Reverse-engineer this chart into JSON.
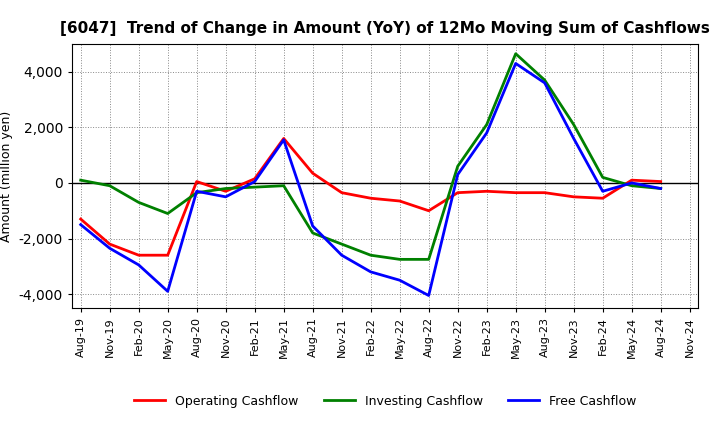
{
  "title": "[6047]  Trend of Change in Amount (YoY) of 12Mo Moving Sum of Cashflows",
  "ylabel": "Amount (million yen)",
  "x_labels": [
    "Aug-19",
    "Nov-19",
    "Feb-20",
    "May-20",
    "Aug-20",
    "Nov-20",
    "Feb-21",
    "May-21",
    "Aug-21",
    "Nov-21",
    "Feb-22",
    "May-22",
    "Aug-22",
    "Nov-22",
    "Feb-23",
    "May-23",
    "Aug-23",
    "Nov-23",
    "Feb-24",
    "May-24",
    "Aug-24",
    "Nov-24"
  ],
  "operating": [
    -1300,
    -2200,
    -2600,
    -2600,
    50,
    -300,
    150,
    1600,
    350,
    -350,
    -550,
    -650,
    -1000,
    -350,
    -300,
    -350,
    -350,
    -500,
    -550,
    100,
    50,
    null
  ],
  "investing": [
    100,
    -100,
    -700,
    -1100,
    -350,
    -200,
    -150,
    -100,
    -1800,
    -2200,
    -2600,
    -2750,
    -2750,
    600,
    2100,
    4650,
    3700,
    2100,
    200,
    -100,
    -200,
    null
  ],
  "free": [
    -1500,
    -2350,
    -2950,
    -3900,
    -300,
    -500,
    50,
    1550,
    -1550,
    -2600,
    -3200,
    -3500,
    -4050,
    300,
    1800,
    4300,
    3600,
    1600,
    -300,
    0,
    -200,
    null
  ],
  "operating_color": "#ff0000",
  "investing_color": "#008000",
  "free_color": "#0000ff",
  "ylim": [
    -4500,
    5000
  ],
  "yticks": [
    -4000,
    -2000,
    0,
    2000,
    4000
  ],
  "background_color": "#ffffff",
  "grid_color": "#888888",
  "title_fontsize": 11,
  "ylabel_fontsize": 9,
  "tick_fontsize": 8,
  "legend_fontsize": 9,
  "linewidth": 2.0
}
